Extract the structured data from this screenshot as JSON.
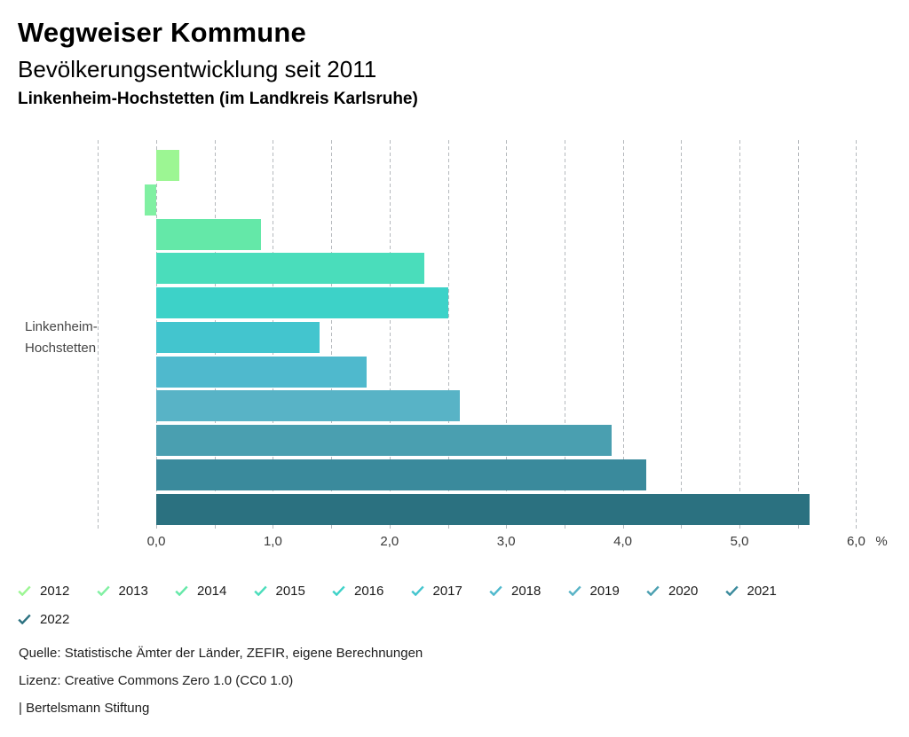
{
  "header": {
    "title": "Wegweiser Kommune",
    "subtitle": "Bevölkerungsentwicklung seit 2011",
    "region": "Linkenheim-Hochstetten (im Landkreis Karlsruhe)"
  },
  "chart_data": {
    "type": "bar",
    "orientation": "horizontal",
    "title": "Bevölkerungsentwicklung seit 2011",
    "row_label_lines": [
      "Linkenheim-",
      "Hochstetten"
    ],
    "categories": [
      "2012",
      "2013",
      "2014",
      "2015",
      "2016",
      "2017",
      "2018",
      "2019",
      "2020",
      "2021",
      "2022"
    ],
    "values": [
      0.2,
      -0.1,
      0.9,
      2.3,
      2.5,
      1.4,
      1.8,
      2.6,
      3.9,
      4.2,
      5.6
    ],
    "colors": [
      "#9CF693",
      "#80F0A2",
      "#64E8A8",
      "#4ADDBB",
      "#3DD2C8",
      "#43C5CE",
      "#4FB9CD",
      "#58B3C6",
      "#4A9FB0",
      "#3A8A9C",
      "#2B7180"
    ],
    "unit_label": "%",
    "xlabel": "",
    "ylabel": "Linkenheim-Hochstetten",
    "xlim": [
      -0.5,
      6.4
    ],
    "grid_step": 0.5,
    "grid_last": 6.0,
    "grid": "dashed-vertical",
    "x_ticks": [
      {
        "value": 0,
        "label": "0,0"
      },
      {
        "value": 1,
        "label": "1,0"
      },
      {
        "value": 2,
        "label": "2,0"
      },
      {
        "value": 3,
        "label": "3,0"
      },
      {
        "value": 4,
        "label": "4,0"
      },
      {
        "value": 5,
        "label": "5,0"
      },
      {
        "value": 6,
        "label": "6,0"
      }
    ],
    "legend_position": "bottom",
    "legend_marker": "check-icon"
  },
  "footer": {
    "source": "Quelle: Statistische Ämter der Länder, ZEFIR, eigene Berechnungen",
    "license": "Lizenz: Creative Commons Zero 1.0 (CC0 1.0)",
    "attribution": "| Bertelsmann Stiftung"
  }
}
